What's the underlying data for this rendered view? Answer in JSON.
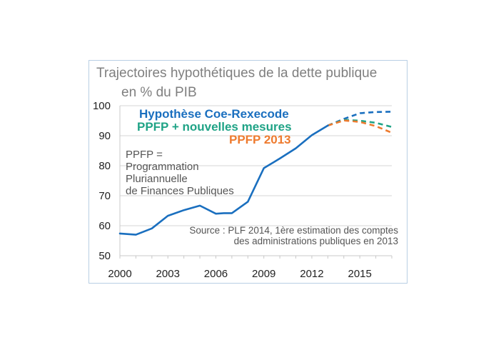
{
  "title_line1": "Trajectoires hypothétiques de la dette publique",
  "title_line2": "en % du PIB",
  "note_lines": [
    "PPFP =",
    "Programmation",
    "Pluriannuelle",
    "de Finances Publiques"
  ],
  "source_lines": [
    "Source : PLF 2014, 1ère estimation des comptes",
    "des administrations publiques en 2013"
  ],
  "colors": {
    "blue": "#1a6fbf",
    "green": "#1fa386",
    "orange": "#ee7b2f",
    "grid": "#d6d6d6",
    "axis": "#c8c8c8"
  },
  "chart_data": {
    "type": "line",
    "xlabel": "",
    "ylabel": "",
    "xlim": [
      2000,
      2017
    ],
    "ylim": [
      50,
      100
    ],
    "x_ticks": [
      2000,
      2003,
      2006,
      2009,
      2012,
      2015
    ],
    "y_ticks": [
      50,
      60,
      70,
      80,
      90,
      100
    ],
    "grid": true,
    "legend_position": "top-right",
    "series": [
      {
        "name": "",
        "style": "solid",
        "color": "#1a6fbf",
        "x": [
          2000,
          2001,
          2002,
          2003,
          2004,
          2005,
          2006,
          2006.5,
          2007,
          2008,
          2009,
          2010,
          2011,
          2012,
          2013
        ],
        "y": [
          57.4,
          57.0,
          59.1,
          63.3,
          65.2,
          66.7,
          64.0,
          64.2,
          64.2,
          68.0,
          79.2,
          82.4,
          85.8,
          90.2,
          93.4
        ]
      },
      {
        "name": "Hypothèse Coe-Rexecode",
        "style": "dashed",
        "color": "#1a6fbf",
        "x": [
          2013,
          2014,
          2015,
          2016,
          2017
        ],
        "y": [
          93.4,
          95.6,
          97.5,
          97.9,
          98.0
        ]
      },
      {
        "name": "PPFP + nouvelles mesures",
        "style": "dashed",
        "color": "#1fa386",
        "x": [
          2013,
          2014,
          2015,
          2016,
          2017
        ],
        "y": [
          93.4,
          95.3,
          95.0,
          94.3,
          92.9
        ]
      },
      {
        "name": "PPFP 2013",
        "style": "dashed",
        "color": "#ee7b2f",
        "x": [
          2013,
          2014,
          2015,
          2016,
          2017
        ],
        "y": [
          93.4,
          95.1,
          94.6,
          93.2,
          91.0
        ]
      }
    ]
  }
}
